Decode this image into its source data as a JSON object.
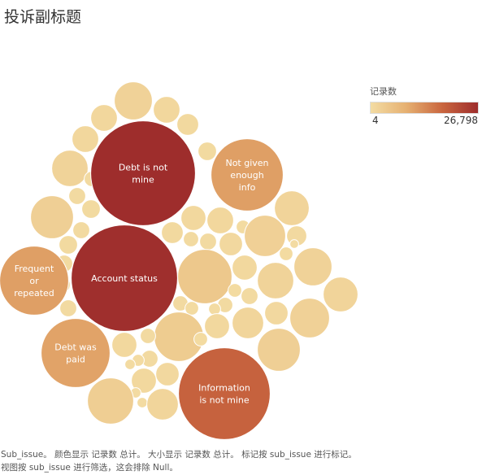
{
  "title": "投诉副标题",
  "legend": {
    "title": "记录数",
    "min_label": "4",
    "max_label": "26,798",
    "colors": [
      "#f3dca3",
      "#e6b071",
      "#c9663f",
      "#9e2d2c"
    ]
  },
  "caption": "Sub_issue。 颜色显示 记录数 总计。 大小显示 记录数 总计。 标记按 sub_issue 进行标记。 视图按 sub_issue 进行筛选，这会排除 Null。",
  "chart_data": {
    "type": "packed-bubble",
    "measure": "记录数",
    "dimension": "sub_issue",
    "color_domain": [
      4,
      26798
    ],
    "labeled_values": [
      {
        "label": "Debt is not mine",
        "value": 26798
      },
      {
        "label": "Account status",
        "value": 26500
      },
      {
        "label": "Information is not mine",
        "value": 18500
      },
      {
        "label": "Frequent or repeated",
        "value": 11000
      },
      {
        "label": "Not given enough info",
        "value": 11000
      },
      {
        "label": "Debt was paid",
        "value": 10500
      }
    ]
  }
}
